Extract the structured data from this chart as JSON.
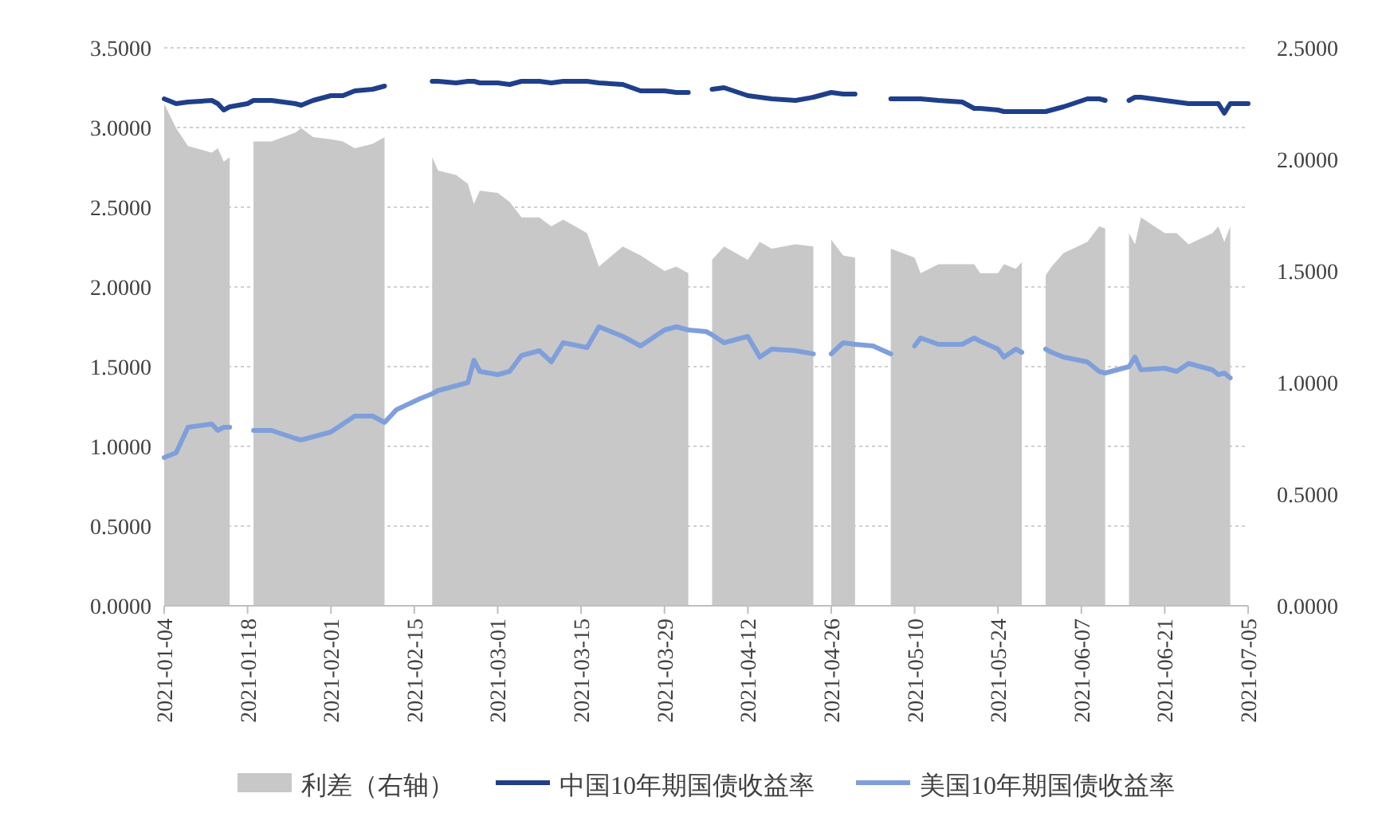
{
  "chart_data": {
    "type": "line",
    "x": [
      "2021-01-04",
      "2021-01-06",
      "2021-01-08",
      "2021-01-12",
      "2021-01-13",
      "2021-01-14",
      "2021-01-15",
      "2021-01-18",
      "2021-01-19",
      "2021-01-22",
      "2021-01-26",
      "2021-01-27",
      "2021-01-29",
      "2021-02-01",
      "2021-02-03",
      "2021-02-05",
      "2021-02-08",
      "2021-02-10",
      "2021-02-12",
      "2021-02-16",
      "2021-02-18",
      "2021-02-19",
      "2021-02-22",
      "2021-02-24",
      "2021-02-25",
      "2021-02-26",
      "2021-03-01",
      "2021-03-03",
      "2021-03-05",
      "2021-03-08",
      "2021-03-10",
      "2021-03-12",
      "2021-03-16",
      "2021-03-18",
      "2021-03-22",
      "2021-03-25",
      "2021-03-29",
      "2021-03-31",
      "2021-04-02",
      "2021-04-05",
      "2021-04-06",
      "2021-04-08",
      "2021-04-12",
      "2021-04-14",
      "2021-04-16",
      "2021-04-20",
      "2021-04-23",
      "2021-04-24",
      "2021-04-26",
      "2021-04-28",
      "2021-04-30",
      "2021-05-03",
      "2021-05-06",
      "2021-05-07",
      "2021-05-10",
      "2021-05-11",
      "2021-05-14",
      "2021-05-18",
      "2021-05-20",
      "2021-05-21",
      "2021-05-24",
      "2021-05-25",
      "2021-05-27",
      "2021-05-28",
      "2021-05-31",
      "2021-06-01",
      "2021-06-02",
      "2021-06-04",
      "2021-06-08",
      "2021-06-10",
      "2021-06-11",
      "2021-06-14",
      "2021-06-15",
      "2021-06-16",
      "2021-06-17",
      "2021-06-21",
      "2021-06-23",
      "2021-06-25",
      "2021-06-29",
      "2021-06-30",
      "2021-07-01",
      "2021-07-02",
      "2021-07-05"
    ],
    "series": [
      {
        "name": "利差（右轴）",
        "type": "area",
        "axis": "y2",
        "color": "#c8c8c8",
        "values": [
          2.25,
          2.14,
          2.06,
          2.03,
          2.05,
          1.99,
          2.01,
          null,
          2.08,
          2.08,
          2.12,
          2.14,
          2.1,
          2.09,
          2.08,
          2.05,
          2.07,
          2.1,
          null,
          null,
          2.01,
          1.95,
          1.93,
          1.89,
          1.8,
          1.86,
          1.85,
          1.81,
          1.74,
          1.74,
          1.7,
          1.73,
          1.67,
          1.52,
          1.61,
          1.57,
          1.5,
          1.52,
          1.49,
          null,
          1.55,
          1.61,
          1.55,
          1.63,
          1.6,
          1.62,
          1.61,
          null,
          1.64,
          1.57,
          1.56,
          null,
          1.6,
          1.59,
          1.56,
          1.49,
          1.53,
          1.53,
          1.53,
          1.49,
          1.49,
          1.53,
          1.51,
          1.54,
          null,
          1.48,
          1.52,
          1.58,
          1.63,
          1.7,
          1.69,
          null,
          1.67,
          1.62,
          1.74,
          1.67,
          1.67,
          1.62,
          1.67,
          1.7,
          1.63,
          1.7,
          null
        ]
      },
      {
        "name": "中国10年期国债收益率",
        "type": "line",
        "color": "#1f3f8a",
        "values": [
          3.18,
          3.15,
          3.16,
          3.17,
          3.15,
          3.11,
          3.13,
          3.15,
          3.17,
          3.17,
          3.15,
          3.14,
          3.17,
          3.2,
          3.2,
          3.23,
          3.24,
          3.26,
          null,
          null,
          3.29,
          3.29,
          3.28,
          3.29,
          3.29,
          3.28,
          3.28,
          3.27,
          3.29,
          3.29,
          3.28,
          3.29,
          3.29,
          3.28,
          3.27,
          3.23,
          3.23,
          3.22,
          3.22,
          null,
          3.24,
          3.25,
          3.2,
          3.19,
          3.18,
          3.17,
          3.19,
          3.2,
          3.22,
          3.21,
          3.21,
          null,
          3.18,
          3.18,
          3.18,
          3.18,
          3.17,
          3.16,
          3.12,
          3.12,
          3.11,
          3.1,
          3.1,
          3.1,
          3.1,
          3.1,
          3.11,
          3.13,
          3.18,
          3.18,
          3.17,
          null,
          3.17,
          3.19,
          3.19,
          3.17,
          3.16,
          3.15,
          3.15,
          3.15,
          3.09,
          3.15,
          3.15
        ]
      },
      {
        "name": "美国10年期国债收益率",
        "type": "line",
        "color": "#7f9fdb",
        "values": [
          0.93,
          0.96,
          1.12,
          1.14,
          1.1,
          1.12,
          1.12,
          null,
          1.1,
          1.1,
          1.05,
          1.04,
          1.06,
          1.09,
          1.14,
          1.19,
          1.19,
          1.15,
          1.23,
          1.3,
          1.33,
          1.35,
          1.38,
          1.4,
          1.54,
          1.47,
          1.45,
          1.47,
          1.57,
          1.6,
          1.53,
          1.65,
          1.62,
          1.75,
          1.69,
          1.63,
          1.73,
          1.75,
          1.73,
          1.72,
          1.7,
          1.65,
          1.69,
          1.56,
          1.61,
          1.6,
          1.58,
          null,
          1.58,
          1.65,
          1.64,
          1.63,
          1.58,
          null,
          1.63,
          1.68,
          1.64,
          1.64,
          1.68,
          1.66,
          1.61,
          1.56,
          1.61,
          1.59,
          null,
          1.61,
          1.59,
          1.56,
          1.53,
          1.47,
          1.46,
          1.49,
          1.5,
          1.56,
          1.48,
          1.49,
          1.47,
          1.52,
          1.48,
          1.45,
          1.46,
          1.43,
          null
        ]
      }
    ],
    "xlim": [
      "2021-01-04",
      "2021-07-05"
    ],
    "xticks": [
      "2021-01-04",
      "2021-01-18",
      "2021-02-01",
      "2021-02-15",
      "2021-03-01",
      "2021-03-15",
      "2021-03-29",
      "2021-04-12",
      "2021-04-26",
      "2021-05-10",
      "2021-05-24",
      "2021-06-07",
      "2021-06-21",
      "2021-07-05"
    ],
    "ylim": [
      0,
      3.5
    ],
    "yticks": [
      {
        "value": 0,
        "label": "0.0000"
      },
      {
        "value": 0.5,
        "label": "0.5000"
      },
      {
        "value": 1,
        "label": "1.0000"
      },
      {
        "value": 1.5,
        "label": "1.5000"
      },
      {
        "value": 2,
        "label": "2.0000"
      },
      {
        "value": 2.5,
        "label": "2.5000"
      },
      {
        "value": 3,
        "label": "3.0000"
      },
      {
        "value": 3.5,
        "label": "3.5000"
      }
    ],
    "y2lim": [
      0,
      2.5
    ],
    "y2ticks": [
      {
        "value": 0,
        "label": "0.0000"
      },
      {
        "value": 0.5,
        "label": "0.5000"
      },
      {
        "value": 1,
        "label": "1.0000"
      },
      {
        "value": 1.5,
        "label": "1.5000"
      },
      {
        "value": 2,
        "label": "2.0000"
      },
      {
        "value": 2.5,
        "label": "2.5000"
      }
    ],
    "grid": "y",
    "legend": "bottom"
  }
}
